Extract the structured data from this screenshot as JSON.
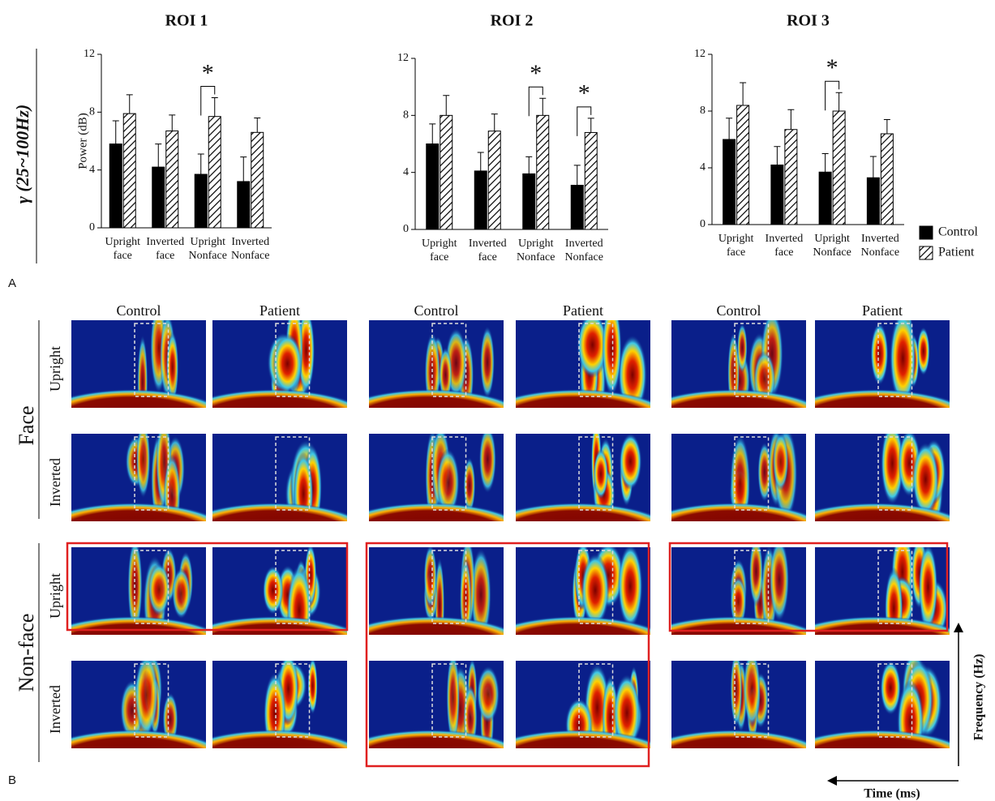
{
  "chart_data": [
    {
      "type": "bar",
      "title": "ROI 1",
      "y_label": "Power (dB)",
      "categories": [
        "Upright face",
        "Inverted face",
        "Upright Nonface",
        "Inverted Nonface"
      ],
      "series": [
        {
          "color": "#000000",
          "values": [
            5.8,
            4.2,
            3.7,
            3.2
          ],
          "errors": [
            1.6,
            1.6,
            1.4,
            1.7
          ]
        },
        {
          "color": "hatch",
          "values": [
            7.9,
            6.7,
            7.7,
            6.6
          ],
          "errors": [
            1.3,
            1.1,
            1.3,
            1.0
          ]
        }
      ],
      "ylim": [
        0,
        12
      ],
      "yticks": [
        0,
        4,
        8,
        12
      ],
      "annotations": [
        {
          "text": "*",
          "category": "Upright Nonface"
        }
      ]
    },
    {
      "type": "bar",
      "title": "ROI 2",
      "categories": [
        "Upright face",
        "Inverted face",
        "Upright Nonface",
        "Inverted Nonface"
      ],
      "series": [
        {
          "color": "#000000",
          "values": [
            6.0,
            4.1,
            3.9,
            3.1
          ],
          "errors": [
            1.4,
            1.3,
            1.2,
            1.4
          ]
        },
        {
          "color": "hatch",
          "values": [
            8.0,
            6.9,
            8.0,
            6.8
          ],
          "errors": [
            1.4,
            1.2,
            1.2,
            1.0
          ]
        }
      ],
      "ylim": [
        0,
        12
      ],
      "yticks": [
        0,
        4,
        8,
        12
      ],
      "annotations": [
        {
          "text": "*",
          "category": "Upright Nonface"
        },
        {
          "text": "*",
          "category": "Inverted Nonface"
        }
      ]
    },
    {
      "type": "bar",
      "title": "ROI 3",
      "categories": [
        "Upright face",
        "Inverted face",
        "Upright Nonface",
        "Inverted Nonface"
      ],
      "series": [
        {
          "name": "Control",
          "color": "#000000",
          "values": [
            6.0,
            4.2,
            3.7,
            3.3
          ],
          "errors": [
            1.5,
            1.3,
            1.3,
            1.5
          ]
        },
        {
          "name": "Patient",
          "color": "hatch",
          "values": [
            8.4,
            6.7,
            8.0,
            6.4
          ],
          "errors": [
            1.6,
            1.4,
            1.3,
            1.0
          ]
        }
      ],
      "ylim": [
        0,
        12
      ],
      "yticks": [
        0,
        4,
        8,
        12
      ],
      "annotations": [
        {
          "text": "*",
          "category": "Upright Nonface"
        }
      ]
    }
  ],
  "row_label": "γ (25~100Hz)",
  "panel_a": "A",
  "panel_b": {
    "label": "B",
    "columns": [
      "Control",
      "Patient"
    ],
    "groups": [
      "Face",
      "Non-face"
    ],
    "rows": [
      "Upright",
      "Inverted"
    ],
    "y_axis": "Frequency (Hz)",
    "x_axis": "Time (ms)"
  }
}
